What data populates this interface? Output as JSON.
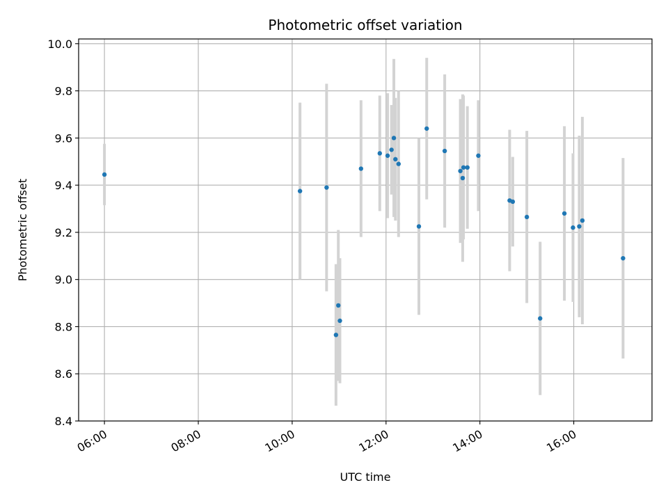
{
  "chart_data": {
    "type": "scatter",
    "title": "Photometric offset variation",
    "xlabel": "UTC time",
    "ylabel": "Photometric offset",
    "xlim": [
      "05:27",
      "17:40"
    ],
    "ylim": [
      8.4,
      10.02
    ],
    "grid": true,
    "legend": "none",
    "x_ticks": [
      "06:00",
      "08:00",
      "10:00",
      "12:00",
      "14:00",
      "16:00"
    ],
    "y_ticks": [
      8.4,
      8.6,
      8.8,
      9.0,
      9.2,
      9.4,
      9.6,
      9.8,
      10.0
    ],
    "colors": {
      "point": "#1f77b4",
      "errorbar": "#d3d3d3",
      "grid": "#b0b0b0",
      "axis": "#000000"
    },
    "points": [
      {
        "x": "06:00",
        "y": 9.445,
        "err": 0.13
      },
      {
        "x": "10:10",
        "y": 9.375,
        "err": 0.375
      },
      {
        "x": "10:44",
        "y": 9.39,
        "err": 0.44
      },
      {
        "x": "10:56",
        "y": 8.765,
        "err": 0.3
      },
      {
        "x": "10:59",
        "y": 8.89,
        "err": 0.32
      },
      {
        "x": "11:01",
        "y": 8.825,
        "err": 0.265
      },
      {
        "x": "11:28",
        "y": 9.47,
        "err": 0.29
      },
      {
        "x": "11:52",
        "y": 9.535,
        "err": 0.245
      },
      {
        "x": "12:02",
        "y": 9.525,
        "err": 0.265
      },
      {
        "x": "12:07",
        "y": 9.55,
        "err": 0.19
      },
      {
        "x": "12:10",
        "y": 9.6,
        "err": 0.335
      },
      {
        "x": "12:12",
        "y": 9.51,
        "err": 0.26
      },
      {
        "x": "12:16",
        "y": 9.49,
        "err": 0.31
      },
      {
        "x": "12:42",
        "y": 9.225,
        "err": 0.375
      },
      {
        "x": "12:52",
        "y": 9.64,
        "err": 0.3
      },
      {
        "x": "13:15",
        "y": 9.545,
        "err": 0.325
      },
      {
        "x": "13:35",
        "y": 9.46,
        "err": 0.305
      },
      {
        "x": "13:38",
        "y": 9.43,
        "err": 0.355
      },
      {
        "x": "13:39",
        "y": 9.475,
        "err": 0.305
      },
      {
        "x": "13:44",
        "y": 9.475,
        "err": 0.26
      },
      {
        "x": "13:58",
        "y": 9.525,
        "err": 0.235
      },
      {
        "x": "14:38",
        "y": 9.335,
        "err": 0.3
      },
      {
        "x": "14:42",
        "y": 9.33,
        "err": 0.19
      },
      {
        "x": "15:00",
        "y": 9.265,
        "err": 0.365
      },
      {
        "x": "15:17",
        "y": 8.835,
        "err": 0.325
      },
      {
        "x": "15:48",
        "y": 9.28,
        "err": 0.37
      },
      {
        "x": "15:59",
        "y": 9.22,
        "err": 0.315
      },
      {
        "x": "16:07",
        "y": 9.225,
        "err": 0.385
      },
      {
        "x": "16:11",
        "y": 9.25,
        "err": 0.44
      },
      {
        "x": "17:03",
        "y": 9.09,
        "err": 0.425
      }
    ]
  }
}
